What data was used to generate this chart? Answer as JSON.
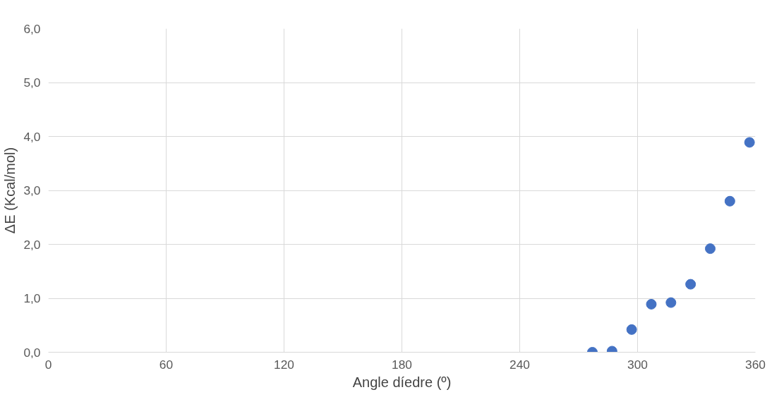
{
  "chart_data": {
    "type": "scatter",
    "xlabel": "Angle díedre (º)",
    "ylabel": "ΔE (Kcal/mol)",
    "x": [
      277,
      287,
      297,
      307,
      317,
      327,
      337,
      347,
      357
    ],
    "series": [
      {
        "color": "#4472c4",
        "values": [
          0.0,
          0.02,
          0.42,
          0.89,
          0.92,
          1.26,
          1.92,
          2.8,
          3.89
        ]
      }
    ],
    "xlim": [
      0,
      360
    ],
    "xticks": [
      0,
      60,
      120,
      180,
      240,
      300,
      360
    ],
    "ylim": [
      0,
      6
    ],
    "yticks": [
      {
        "value": 0,
        "label": "0,0"
      },
      {
        "value": 1,
        "label": "1,0"
      },
      {
        "value": 2,
        "label": "2,0"
      },
      {
        "value": 3,
        "label": "3,0"
      },
      {
        "value": 4,
        "label": "4,0"
      },
      {
        "value": 5,
        "label": "5,0"
      },
      {
        "value": 6,
        "label": "6,0"
      }
    ],
    "grid": true,
    "marker": "circle"
  }
}
